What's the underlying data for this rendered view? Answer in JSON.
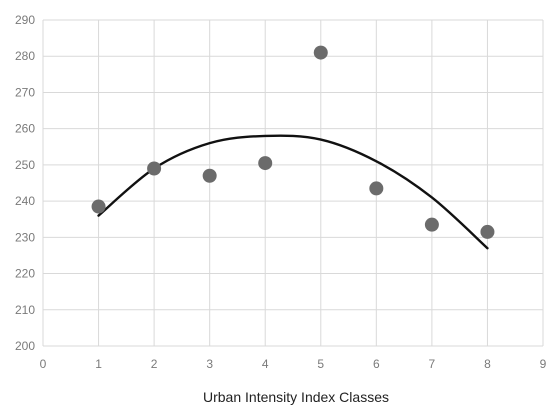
{
  "chart_data": {
    "type": "scatter",
    "title": "",
    "xlabel": "Urban Intensity Index Classes",
    "ylabel": "",
    "xlim": [
      0,
      9
    ],
    "ylim": [
      200,
      290
    ],
    "x_ticks": [
      0,
      1,
      2,
      3,
      4,
      5,
      6,
      7,
      8,
      9
    ],
    "y_ticks": [
      200,
      210,
      220,
      230,
      240,
      250,
      260,
      270,
      280,
      290
    ],
    "grid": true,
    "legend": "none",
    "series": [
      {
        "type": "scatter",
        "color": "#6b6b6b",
        "points": [
          {
            "x": 1,
            "y": 238.5
          },
          {
            "x": 2,
            "y": 249
          },
          {
            "x": 3,
            "y": 247
          },
          {
            "x": 4,
            "y": 250.5
          },
          {
            "x": 5,
            "y": 281
          },
          {
            "x": 6,
            "y": 243.5
          },
          {
            "x": 7,
            "y": 233.5
          },
          {
            "x": 8,
            "y": 231.5
          }
        ]
      },
      {
        "type": "line",
        "trendline": "polynomial-2",
        "color": "#111111",
        "points": [
          {
            "x": 1,
            "y": 236
          },
          {
            "x": 2,
            "y": 249
          },
          {
            "x": 3,
            "y": 256
          },
          {
            "x": 4,
            "y": 258
          },
          {
            "x": 5,
            "y": 257
          },
          {
            "x": 6,
            "y": 251
          },
          {
            "x": 7,
            "y": 241
          },
          {
            "x": 8,
            "y": 227
          }
        ]
      }
    ]
  }
}
